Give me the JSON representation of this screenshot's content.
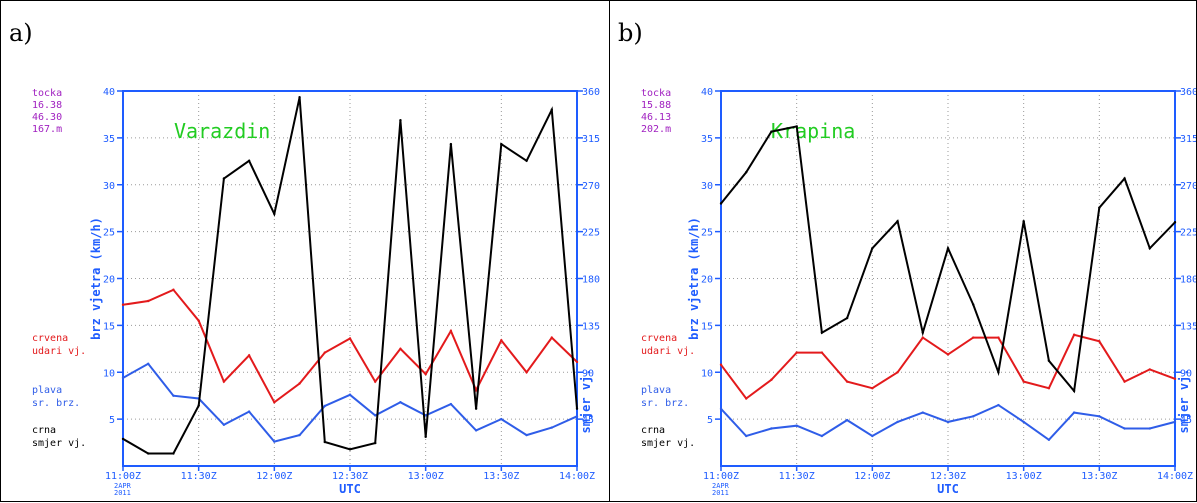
{
  "colors": {
    "axis": "#1e5cff",
    "grid": "#9a9a9a",
    "gust": "#e31a1c",
    "mean": "#2f5de8",
    "direction": "#000000",
    "info": "#a020c0",
    "title": "#22cc22"
  },
  "chart_data": [
    {
      "type": "line",
      "panel_label": "a)",
      "title": "Varazdin",
      "info_lines": [
        "tocka",
        "16.38",
        "46.30",
        "167.m"
      ],
      "xlabel": "UTC",
      "ylabel_left": "brz vjetra (km/h)",
      "ylabel_right": "smjer vj.",
      "date_lines": [
        "2APR",
        "2011"
      ],
      "xlim": [
        0,
        180
      ],
      "ylim": [
        0,
        40
      ],
      "ylim_right": [
        0,
        360
      ],
      "yticks_left": [
        5,
        10,
        15,
        20,
        25,
        30,
        35,
        40
      ],
      "yticks_right": [
        45,
        90,
        135,
        180,
        225,
        270,
        315,
        360
      ],
      "xticks": [
        0,
        30,
        60,
        90,
        120,
        150,
        180
      ],
      "xtick_labels": [
        "11:00Z",
        "11:30Z",
        "12:00Z",
        "12:30Z",
        "13:00Z",
        "13:30Z",
        "14:00Z"
      ],
      "legend": [
        {
          "lines": [
            "crvena",
            "udari vj."
          ],
          "color": "gust"
        },
        {
          "lines": [
            "plava",
            "sr. brz."
          ],
          "color": "mean"
        },
        {
          "lines": [
            "crna",
            "smjer vj."
          ],
          "color": "direction"
        }
      ],
      "x": [
        0,
        10,
        20,
        30,
        40,
        50,
        60,
        70,
        80,
        90,
        100,
        110,
        120,
        130,
        140,
        150,
        160,
        170,
        180
      ],
      "series": [
        {
          "name": "udari vj.",
          "color": "gust",
          "axis": "left",
          "values": [
            17.2,
            17.6,
            18.8,
            15.5,
            9.0,
            11.8,
            6.8,
            8.8,
            12.1,
            13.6,
            9.0,
            12.5,
            9.8,
            14.4,
            8.1,
            13.4,
            10.0,
            13.7,
            11.1
          ]
        },
        {
          "name": "sr. brz.",
          "color": "mean",
          "axis": "left",
          "values": [
            9.4,
            10.9,
            7.5,
            7.2,
            4.4,
            5.8,
            2.6,
            3.3,
            6.4,
            7.6,
            5.4,
            6.8,
            5.4,
            6.6,
            3.8,
            5.0,
            3.3,
            4.1,
            5.3
          ]
        },
        {
          "name": "smjer vj.",
          "color": "direction",
          "axis": "right",
          "values": [
            26,
            12,
            12,
            58,
            276,
            293,
            242,
            354,
            23,
            16,
            22,
            332,
            28,
            309,
            55,
            309,
            293,
            342,
            55
          ]
        }
      ]
    },
    {
      "type": "line",
      "panel_label": "b)",
      "title": "Krapina",
      "info_lines": [
        "tocka",
        "15.88",
        "46.13",
        "202.m"
      ],
      "xlabel": "UTC",
      "ylabel_left": "brz vjetra (km/h)",
      "ylabel_right": "smjer vj.",
      "date_lines": [
        "2APR",
        "2011"
      ],
      "xlim": [
        0,
        180
      ],
      "ylim": [
        0,
        40
      ],
      "ylim_right": [
        0,
        360
      ],
      "yticks_left": [
        5,
        10,
        15,
        20,
        25,
        30,
        35,
        40
      ],
      "yticks_right": [
        45,
        90,
        135,
        180,
        225,
        270,
        315,
        360
      ],
      "xticks": [
        0,
        30,
        60,
        90,
        120,
        150,
        180
      ],
      "xtick_labels": [
        "11:00Z",
        "11:30Z",
        "12:00Z",
        "12:30Z",
        "13:00Z",
        "13:30Z",
        "14:00Z"
      ],
      "legend": [
        {
          "lines": [
            "crvena",
            "udari vj."
          ],
          "color": "gust"
        },
        {
          "lines": [
            "plava",
            "sr. brz."
          ],
          "color": "mean"
        },
        {
          "lines": [
            "crna",
            "smjer vj."
          ],
          "color": "direction"
        }
      ],
      "x": [
        0,
        10,
        20,
        30,
        40,
        50,
        60,
        70,
        80,
        90,
        100,
        110,
        120,
        130,
        140,
        150,
        160,
        170,
        180
      ],
      "series": [
        {
          "name": "udari vj.",
          "color": "gust",
          "axis": "left",
          "values": [
            10.8,
            7.2,
            9.2,
            12.1,
            12.1,
            9.0,
            8.3,
            10.0,
            13.7,
            11.9,
            13.7,
            13.7,
            9.0,
            8.3,
            14.0,
            13.3,
            9.0,
            10.3,
            9.3
          ]
        },
        {
          "name": "sr. brz.",
          "color": "mean",
          "axis": "left",
          "values": [
            6.1,
            3.2,
            4.0,
            4.3,
            3.2,
            4.9,
            3.2,
            4.7,
            5.7,
            4.7,
            5.3,
            6.5,
            4.7,
            2.8,
            5.7,
            5.3,
            4.0,
            4.0,
            4.7
          ]
        },
        {
          "name": "smjer vj.",
          "color": "direction",
          "axis": "right",
          "values": [
            252,
            282,
            321,
            326,
            128,
            142,
            209,
            235,
            128,
            209,
            155,
            90,
            235,
            101,
            72,
            248,
            276,
            209,
            234
          ]
        }
      ]
    }
  ]
}
